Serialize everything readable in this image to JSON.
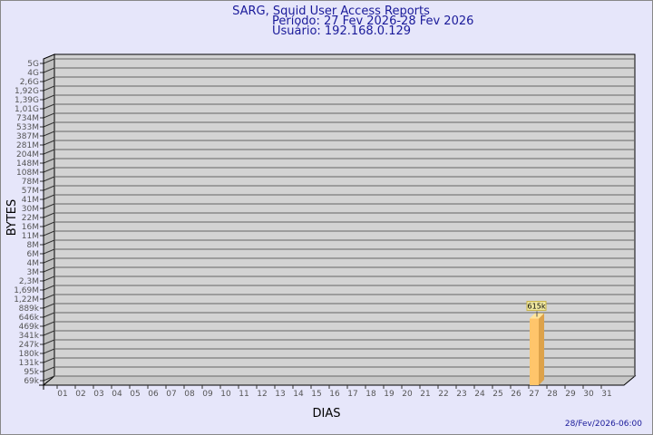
{
  "chart_data": {
    "type": "bar",
    "title": "SARG, Squid User Access Reports",
    "subtitle_period": "Período: 27 Fev 2026-28 Fev 2026",
    "subtitle_user": "Usuário: 192.168.0.129",
    "xlabel": "DIAS",
    "ylabel": "BYTES",
    "yscale": "log",
    "grid": true,
    "y_ticks": [
      "5G",
      "4G",
      "2,6G",
      "1,92G",
      "1,39G",
      "1,01G",
      "734M",
      "533M",
      "387M",
      "281M",
      "204M",
      "148M",
      "108M",
      "78M",
      "57M",
      "41M",
      "30M",
      "22M",
      "16M",
      "11M",
      "8M",
      "6M",
      "4M",
      "3M",
      "2,3M",
      "1,69M",
      "1,22M",
      "889k",
      "646k",
      "469k",
      "341k",
      "247k",
      "180k",
      "131k",
      "95k",
      "69k"
    ],
    "categories": [
      "01",
      "02",
      "03",
      "04",
      "05",
      "06",
      "07",
      "08",
      "09",
      "10",
      "11",
      "12",
      "13",
      "14",
      "15",
      "16",
      "17",
      "18",
      "19",
      "20",
      "21",
      "22",
      "23",
      "24",
      "25",
      "26",
      "27",
      "28",
      "29",
      "30",
      "31"
    ],
    "bars": [
      {
        "day": "27",
        "value": 615000,
        "label": "615k"
      }
    ],
    "colors": {
      "background": "#e6e6fa",
      "plot": "#d3d3d3",
      "bar_front": "#ffc56b",
      "bar_side": "#dda24a",
      "bar_top": "#ffe49a",
      "title": "#1a1a9a"
    }
  },
  "footer": {
    "timestamp": "28/Fev/2026-06:00"
  }
}
